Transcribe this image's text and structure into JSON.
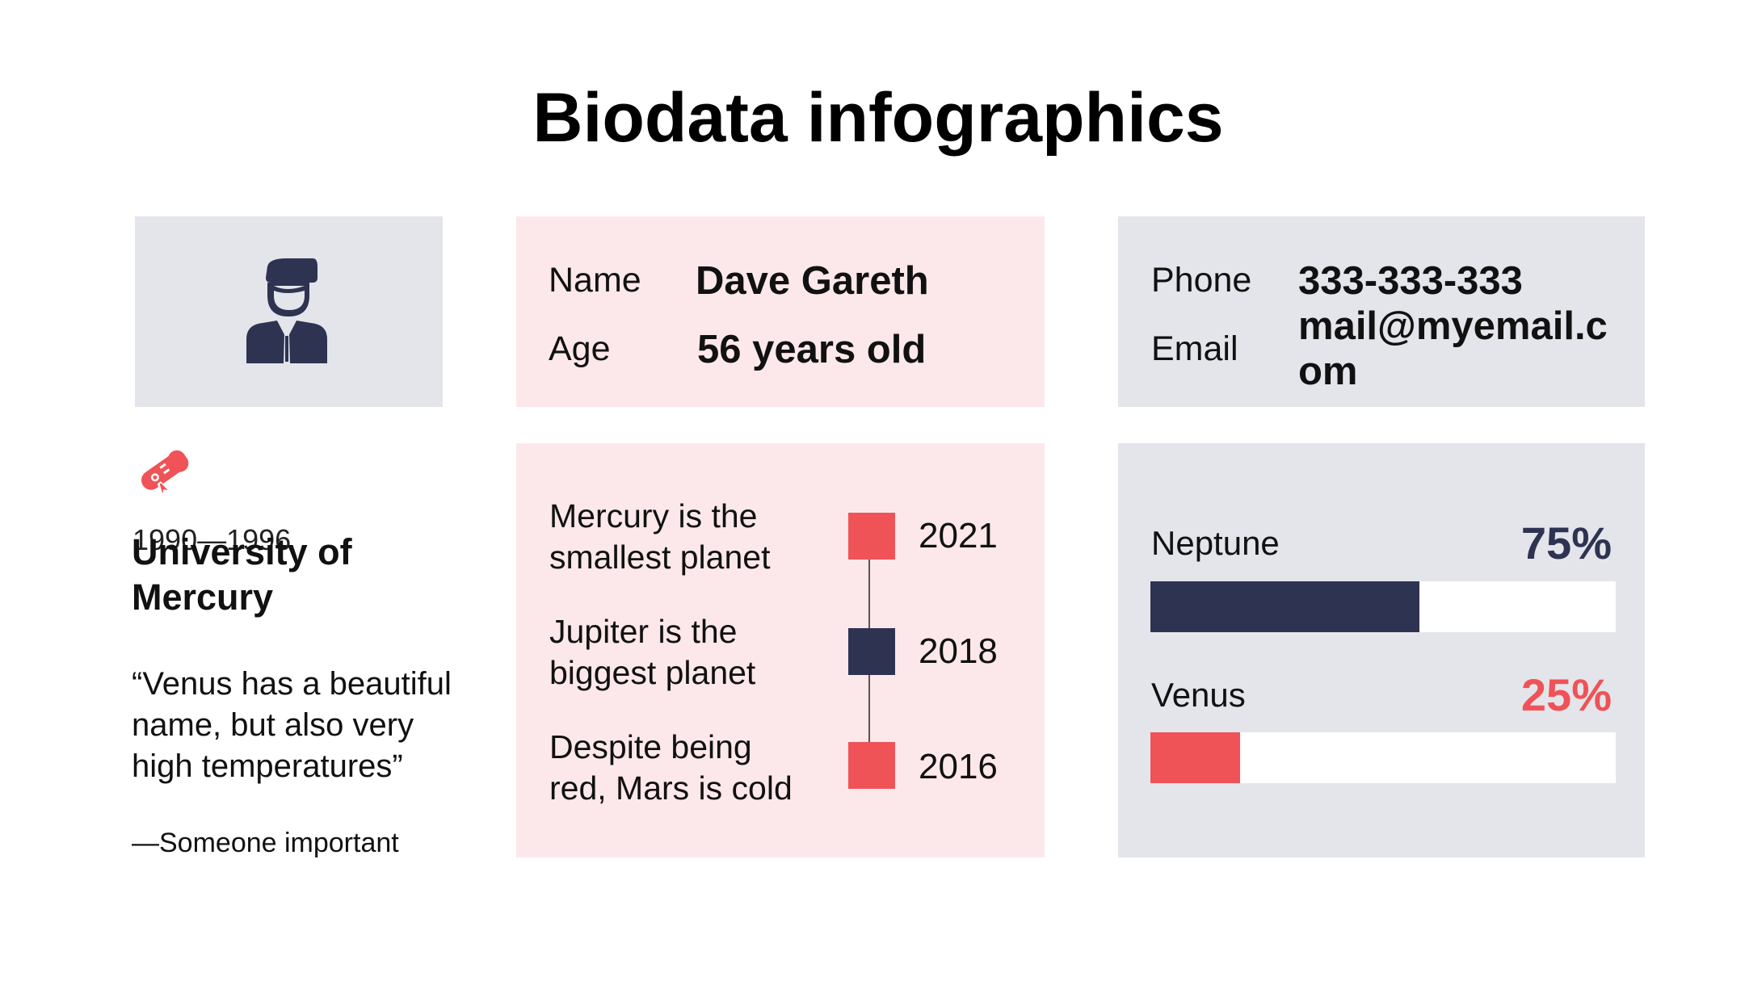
{
  "title": "Biodata infographics",
  "colors": {
    "navy": "#2e3352",
    "coral": "#ef5357",
    "gray_card": "#e4e5ea",
    "pink_card": "#fce8ea"
  },
  "profile": {
    "avatar_icon": "person-suit-icon",
    "name_label": "Name",
    "name_value": "Dave Gareth",
    "age_label": "Age",
    "age_value": "56 years old"
  },
  "contact": {
    "phone_label": "Phone",
    "phone_value": "333-333-333",
    "email_label": "Email",
    "email_value_line1": "mail@myemail.c",
    "email_value_line2": "om"
  },
  "education": {
    "icon": "diploma-icon",
    "years": "1990—1996",
    "school_line1": "University of",
    "school_line2": "Mercury",
    "quote_line1": "“Venus has a beautiful",
    "quote_line2": "name, but also very",
    "quote_line3": "high temperatures”",
    "author": "—Someone important"
  },
  "timeline": [
    {
      "text_line1": "Mercury is the",
      "text_line2": "smallest planet",
      "year": "2021",
      "color": "#ef5357"
    },
    {
      "text_line1": "Jupiter is the",
      "text_line2": "biggest planet",
      "year": "2018",
      "color": "#2e3352"
    },
    {
      "text_line1": "Despite being",
      "text_line2": "red, Mars is cold",
      "year": "2016",
      "color": "#ef5357"
    }
  ],
  "skills": [
    {
      "name": "Neptune",
      "percent_label": "75%",
      "value": 0.75,
      "color": "#2e3352"
    },
    {
      "name": "Venus",
      "percent_label": "25%",
      "value": 0.25,
      "color": "#ef5357"
    }
  ]
}
